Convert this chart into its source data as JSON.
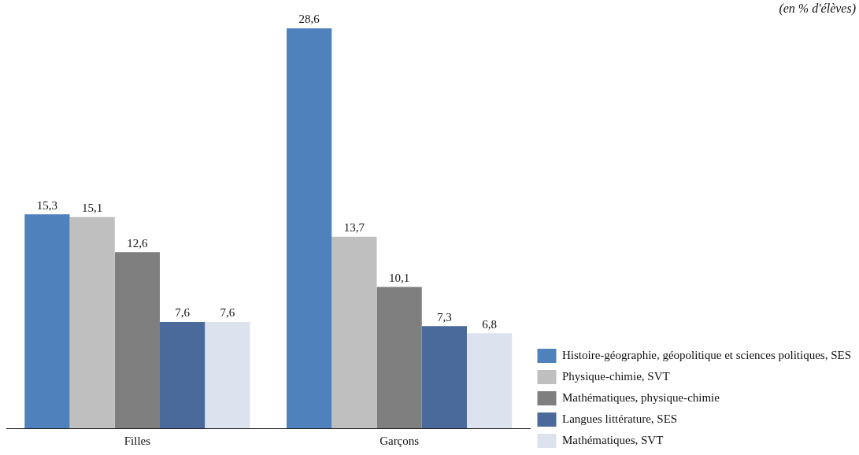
{
  "chart_data": {
    "type": "bar",
    "categories": [
      "Filles",
      "Garçons"
    ],
    "series": [
      {
        "name": "Histoire-géographie, géopolitique et sciences politiques, SES",
        "color": "#4f81bd",
        "values": [
          15.3,
          28.6
        ],
        "value_labels": [
          "15,3",
          "28,6"
        ]
      },
      {
        "name": "Physique-chimie, SVT",
        "color": "#bfbfbf",
        "values": [
          15.1,
          13.7
        ],
        "value_labels": [
          "15,1",
          "13,7"
        ]
      },
      {
        "name": "Mathématiques, physique-chimie",
        "color": "#7f7f7f",
        "values": [
          12.6,
          10.1
        ],
        "value_labels": [
          "12,6",
          "10,1"
        ]
      },
      {
        "name": "Langues littérature, SES",
        "color": "#4a6a9c",
        "values": [
          7.6,
          7.3
        ],
        "value_labels": [
          "7,6",
          "7,3"
        ]
      },
      {
        "name": "Mathématiques, SVT",
        "color": "#dce3ef",
        "values": [
          7.6,
          6.8
        ],
        "value_labels": [
          "7,6",
          "6,8"
        ]
      }
    ],
    "annotations": [
      "(en % d'élèves)"
    ],
    "legend": "bottom right",
    "tick_labels": "x",
    "grid": false
  }
}
